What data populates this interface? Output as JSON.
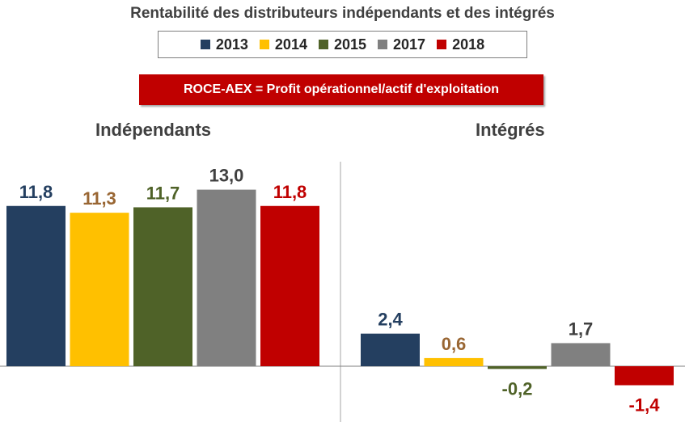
{
  "title": "Rentabilité des distributeurs indépendants et des intégrés",
  "annotation": "ROCE-AEX = Profit opérationnel/actif d'exploitation",
  "legend": [
    {
      "label": "2013",
      "color": "#243f60"
    },
    {
      "label": "2014",
      "color": "#ffc000"
    },
    {
      "label": "2015",
      "color": "#4f6228"
    },
    {
      "label": "2017",
      "color": "#808080"
    },
    {
      "label": "2018",
      "color": "#c00000"
    }
  ],
  "label_colors": [
    "#243f60",
    "#996633",
    "#4f6228",
    "#404040",
    "#c00000"
  ],
  "chart_data": {
    "type": "bar",
    "title": "Rentabilité des distributeurs indépendants et des intégrés",
    "categories": [
      "Indépendants",
      "Intégrés"
    ],
    "series": [
      {
        "name": "2013",
        "values": [
          11.8,
          2.4
        ],
        "labels": [
          "11,8",
          "2,4"
        ]
      },
      {
        "name": "2014",
        "values": [
          11.3,
          0.6
        ],
        "labels": [
          "11,3",
          "0,6"
        ]
      },
      {
        "name": "2015",
        "values": [
          11.7,
          -0.2
        ],
        "labels": [
          "11,7",
          "-0,2"
        ]
      },
      {
        "name": "2017",
        "values": [
          13.0,
          1.7
        ],
        "labels": [
          "13,0",
          "1,7"
        ]
      },
      {
        "name": "2018",
        "values": [
          11.8,
          -1.4
        ],
        "labels": [
          "11,8",
          "-1,4"
        ]
      }
    ],
    "legend_position": "top",
    "grid": false
  }
}
